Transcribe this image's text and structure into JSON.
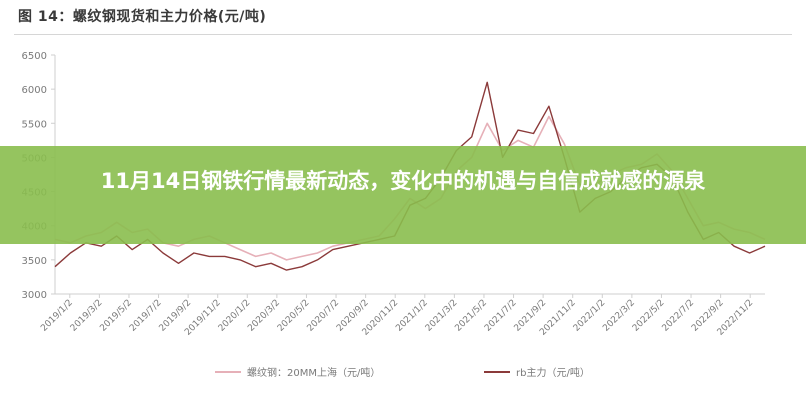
{
  "figure_title": "图 14：螺纹钢现货和主力价格(元/吨)",
  "headline": "11月14日钢铁行情最新动态，变化中的机遇与自信成就感的源泉",
  "colors": {
    "series_spot": "#e6b0b8",
    "series_main": "#8b3a3a",
    "banner": "#8abe4e",
    "axis": "#cfcfcf",
    "tick_text": "#7a7a7a"
  },
  "chart_data": {
    "type": "line",
    "title": "",
    "xlabel": "",
    "ylabel": "",
    "ylim": [
      3000,
      6500
    ],
    "yticks": [
      3000,
      3500,
      4000,
      4500,
      5000,
      5500,
      6000,
      6500
    ],
    "grid": false,
    "legend_position": "bottom",
    "x_tick_labels": [
      "2019/1/2",
      "2019/3/2",
      "2019/5/2",
      "2019/7/2",
      "2019/9/2",
      "2019/11/2",
      "2020/1/2",
      "2020/3/2",
      "2020/5/2",
      "2020/7/2",
      "2020/9/2",
      "2020/11/2",
      "2021/1/2",
      "2021/3/2",
      "2021/5/2",
      "2021/7/2",
      "2021/9/2",
      "2021/11/2",
      "2022/1/2",
      "2022/3/2",
      "2022/5/2",
      "2022/7/2",
      "2022/9/2",
      "2022/11/2"
    ],
    "x": [
      "2019/1",
      "2019/2",
      "2019/3",
      "2019/4",
      "2019/5",
      "2019/6",
      "2019/7",
      "2019/8",
      "2019/9",
      "2019/10",
      "2019/11",
      "2019/12",
      "2020/1",
      "2020/2",
      "2020/3",
      "2020/4",
      "2020/5",
      "2020/6",
      "2020/7",
      "2020/8",
      "2020/9",
      "2020/10",
      "2020/11",
      "2020/12",
      "2021/1",
      "2021/2",
      "2021/3",
      "2021/4",
      "2021/5",
      "2021/6",
      "2021/7",
      "2021/8",
      "2021/9",
      "2021/10",
      "2021/11",
      "2021/12",
      "2022/1",
      "2022/2",
      "2022/3",
      "2022/4",
      "2022/5",
      "2022/6",
      "2022/7",
      "2022/8",
      "2022/9",
      "2022/10",
      "2022/11"
    ],
    "series": [
      {
        "name": "螺纹钢：20MM上海（元/吨）",
        "values": [
          3800,
          3750,
          3850,
          3900,
          4050,
          3900,
          3950,
          3750,
          3700,
          3800,
          3850,
          3750,
          3650,
          3550,
          3600,
          3500,
          3550,
          3600,
          3700,
          3750,
          3800,
          3850,
          4100,
          4400,
          4250,
          4400,
          4800,
          5000,
          5500,
          5100,
          5250,
          5150,
          5600,
          5200,
          4600,
          4600,
          4750,
          4850,
          4900,
          5050,
          4800,
          4400,
          4000,
          4050,
          3950,
          3900,
          3800
        ]
      },
      {
        "name": "rb主力（元/吨）",
        "values": [
          3400,
          3600,
          3750,
          3700,
          3850,
          3650,
          3800,
          3600,
          3450,
          3600,
          3550,
          3550,
          3500,
          3400,
          3450,
          3350,
          3400,
          3500,
          3650,
          3700,
          3750,
          3800,
          3850,
          4300,
          4400,
          4700,
          5100,
          5300,
          6100,
          5000,
          5400,
          5350,
          5750,
          5000,
          4200,
          4400,
          4500,
          4700,
          4850,
          4900,
          4700,
          4200,
          3800,
          3900,
          3700,
          3600,
          3700
        ]
      }
    ]
  }
}
